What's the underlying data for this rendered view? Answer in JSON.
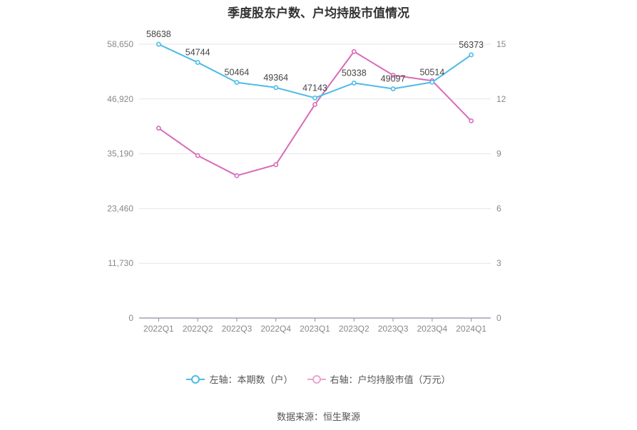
{
  "chart_data": {
    "type": "line",
    "title": "季度股东户数、户均持股市值情况",
    "categories": [
      "2022Q1",
      "2022Q2",
      "2022Q3",
      "2022Q4",
      "2023Q1",
      "2023Q2",
      "2023Q3",
      "2023Q4",
      "2024Q1"
    ],
    "left_axis": {
      "ylim": [
        0,
        58650
      ],
      "ticks": [
        "0",
        "11,730",
        "23,460",
        "35,190",
        "46,920",
        "58,650"
      ]
    },
    "right_axis": {
      "ylim": [
        0,
        15
      ],
      "ticks": [
        "0",
        "3",
        "6",
        "9",
        "12",
        "15"
      ]
    },
    "series": [
      {
        "name": "左轴：本期数（户）",
        "axis": "left",
        "color": "#4dbbe8",
        "values": [
          58638,
          54744,
          50464,
          49364,
          47143,
          50338,
          49097,
          50514,
          56373
        ],
        "labels": [
          "58638",
          "54744",
          "50464",
          "49364",
          "47143",
          "50338",
          "49097",
          "50514",
          "56373"
        ]
      },
      {
        "name": "右轴：户均持股市值（万元）",
        "axis": "right",
        "color": "#d86bb8",
        "values": [
          10.4,
          8.9,
          7.8,
          8.4,
          11.7,
          14.6,
          13.3,
          13.0,
          10.8
        ]
      }
    ],
    "grid": true,
    "legend_position": "bottom"
  },
  "source": "数据来源：恒生聚源"
}
